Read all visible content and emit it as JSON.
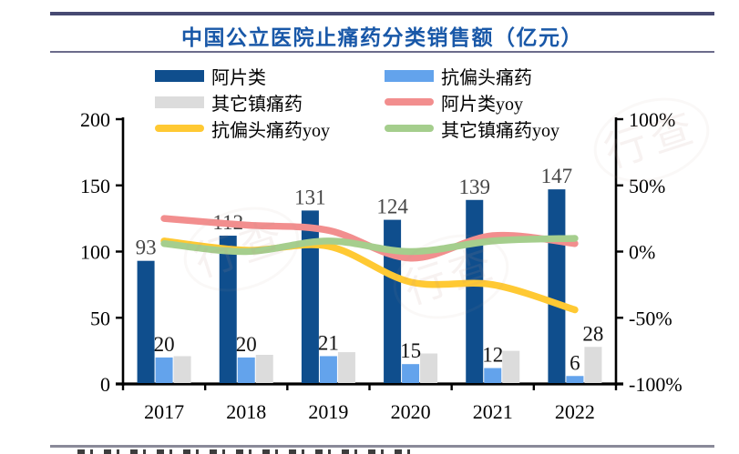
{
  "chart_data": {
    "type": "bar",
    "subtype": "combo-bar-line",
    "title": "中国公立医院止痛药分类销售额（亿元）",
    "categories": [
      "2017",
      "2018",
      "2019",
      "2020",
      "2021",
      "2022"
    ],
    "bar_series": [
      {
        "name": "阿片类",
        "color": "#0F4E8D",
        "values": [
          93,
          112,
          131,
          124,
          139,
          147
        ],
        "labels": [
          "93",
          "112",
          "131",
          "124",
          "139",
          "147"
        ]
      },
      {
        "name": "抗偏头痛药",
        "color": "#63A3EC",
        "values": [
          20,
          20,
          21,
          15,
          12,
          6
        ],
        "labels": [
          "20",
          "20",
          "21",
          "15",
          "12",
          "6"
        ]
      },
      {
        "name": "其它镇痛药",
        "color": "#DCDCDC",
        "values": [
          21,
          22,
          24,
          23,
          25,
          28
        ],
        "labels": [
          "",
          "",
          "",
          "",
          "",
          "28"
        ]
      }
    ],
    "line_series": [
      {
        "name": "阿片类yoy",
        "color": "#F28E8E",
        "unit": "%",
        "values_pct": [
          25,
          20,
          16,
          -5,
          12,
          6
        ]
      },
      {
        "name": "抗偏头痛药yoy",
        "color": "#FFC933",
        "unit": "%",
        "values_pct": [
          8,
          1,
          4,
          -23,
          -25,
          -44
        ]
      },
      {
        "name": "其它镇痛药yoy",
        "color": "#A5CE8D",
        "unit": "%",
        "values_pct": [
          6,
          0,
          8,
          0,
          8,
          10
        ]
      }
    ],
    "axes": {
      "left": {
        "range": [
          0,
          200
        ],
        "tick_values": [
          0,
          50,
          100,
          150,
          200
        ],
        "tick_labels": [
          "0",
          "50",
          "100",
          "150",
          "200"
        ]
      },
      "right": {
        "range": [
          -100,
          100
        ],
        "tick_values": [
          -100,
          -50,
          0,
          50,
          100
        ],
        "tick_labels": [
          "-100%",
          "-50%",
          "0%",
          "50%",
          "100%"
        ]
      }
    },
    "legend": {
      "position": "top",
      "items": [
        {
          "label": "阿片类",
          "swatch": "bar",
          "color": "#0F4E8D"
        },
        {
          "label": "抗偏头痛药",
          "swatch": "bar",
          "color": "#63A3EC"
        },
        {
          "label": "其它镇痛药",
          "swatch": "bar",
          "color": "#DCDCDC"
        },
        {
          "label": "阿片类yoy",
          "swatch": "line",
          "color": "#F28E8E"
        },
        {
          "label": "抗偏头痛药yoy",
          "swatch": "line",
          "color": "#FFC933"
        },
        {
          "label": "其它镇痛药yoy",
          "swatch": "line",
          "color": "#A5CE8D"
        }
      ]
    },
    "grid": false,
    "accent_colors": {
      "title": "#1958A8",
      "header_rule": "#474A72",
      "axis": "#000000"
    }
  },
  "watermark": {
    "text": "行查"
  }
}
